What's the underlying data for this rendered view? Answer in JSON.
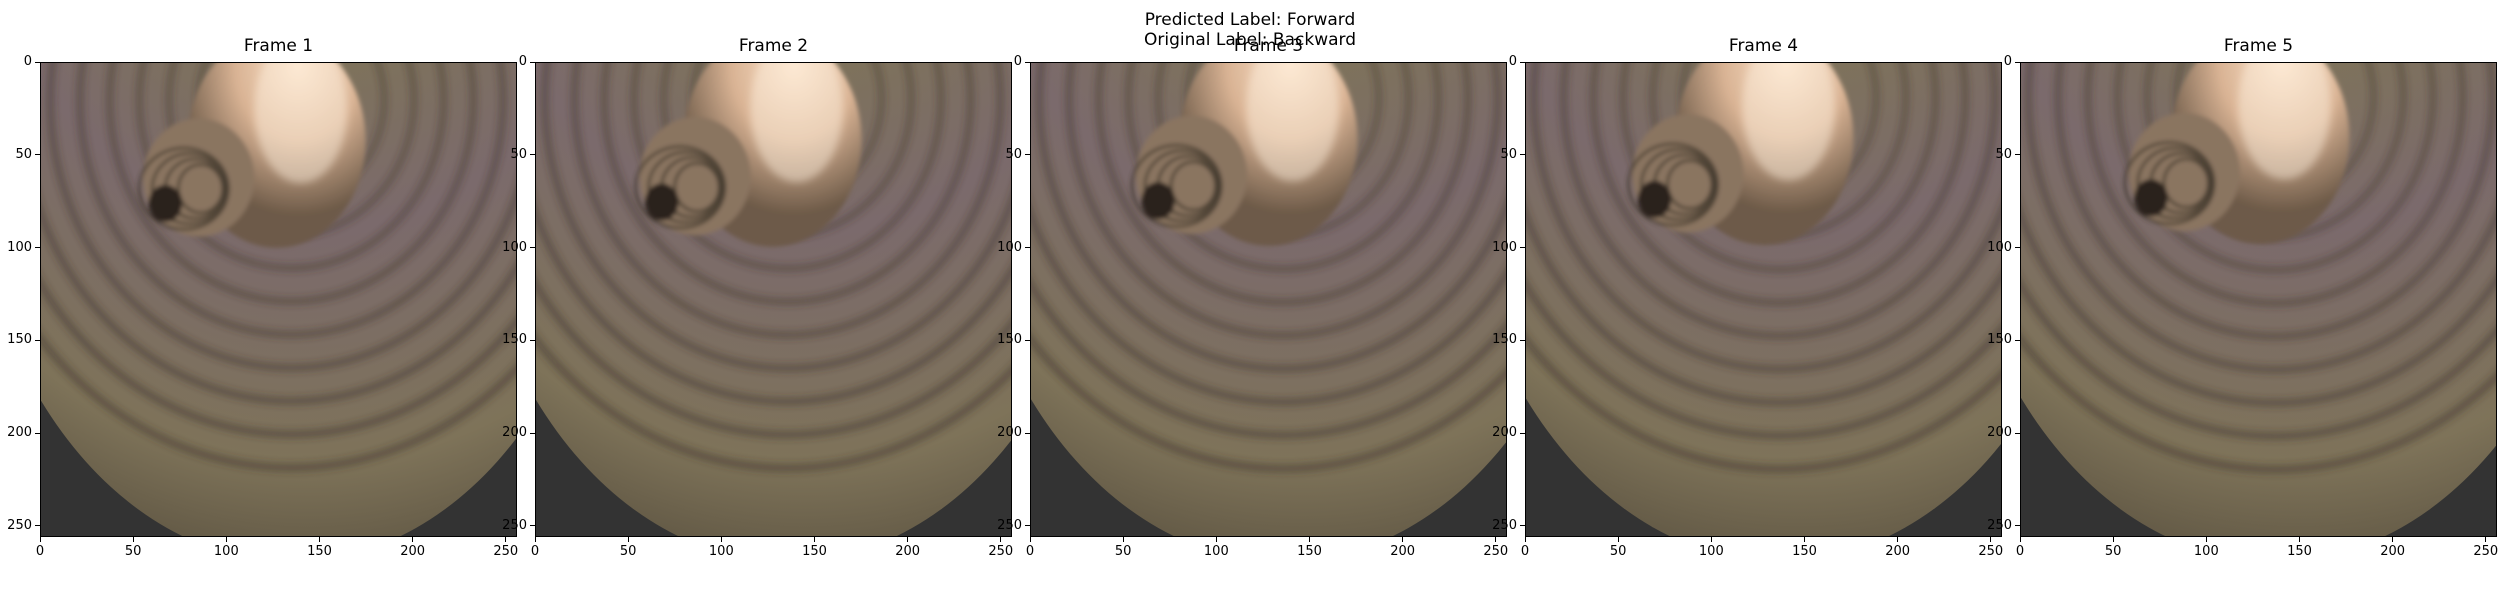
{
  "figure": {
    "suptitle_line1": "Predicted Label: Forward",
    "suptitle_line2": "Original Label: Backward",
    "frames": [
      {
        "title": "Frame 1",
        "shift": 0.0
      },
      {
        "title": "Frame 2",
        "shift": 0.25
      },
      {
        "title": "Frame 3",
        "shift": 0.5
      },
      {
        "title": "Frame 4",
        "shift": 0.75
      },
      {
        "title": "Frame 5",
        "shift": 1.0
      }
    ],
    "x_ticks": [
      "0",
      "50",
      "100",
      "150",
      "200",
      "250"
    ],
    "y_ticks": [
      "0",
      "50",
      "100",
      "150",
      "200",
      "250"
    ],
    "image_extent": 256
  },
  "colors": {
    "tissue_mauve": "#7b6a6c",
    "tissue_olive": "#7e7359",
    "fold_shadow": "#3a3228",
    "lumen_highlight": "#f4d3b7",
    "background_dark": "#333333"
  }
}
